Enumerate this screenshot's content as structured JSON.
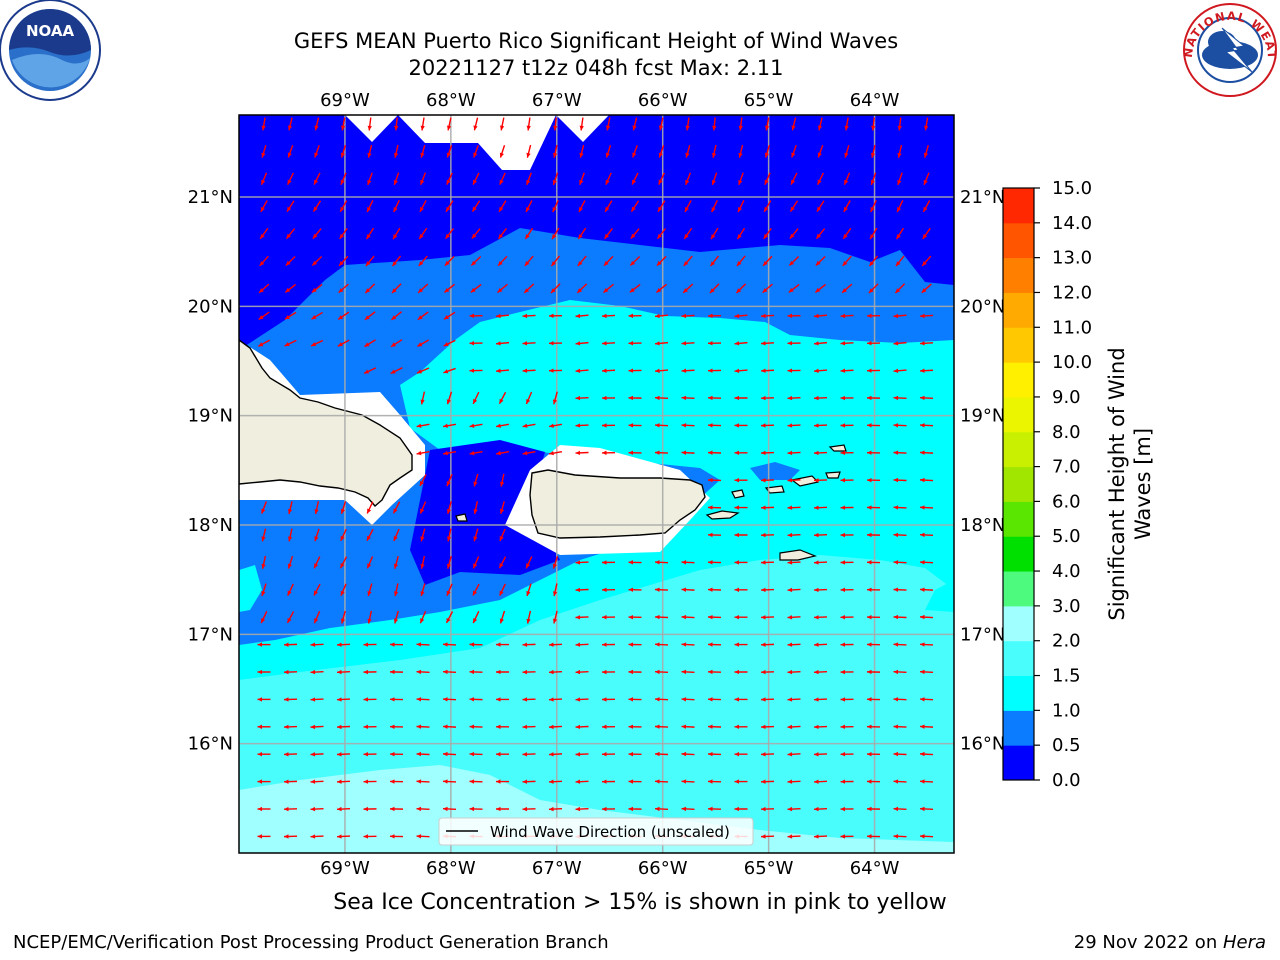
{
  "title": {
    "line1": "GEFS MEAN Puerto Rico Significant Height of Wind Waves",
    "line2": "20221127 t12z 048h fcst   Max: 2.11"
  },
  "logos": {
    "left": {
      "icon": "noaa-logo-icon",
      "text": "NOAA"
    },
    "right": {
      "icon": "nws-logo-icon",
      "text": "NATIONAL WEATHER SERVICE"
    }
  },
  "map": {
    "lon_labels": [
      "69°W",
      "68°W",
      "67°W",
      "66°W",
      "65°W",
      "64°W"
    ],
    "lat_labels": [
      "21°N",
      "20°N",
      "19°N",
      "18°N",
      "17°N",
      "16°N"
    ],
    "lon_values": [
      -69,
      -68,
      -67,
      -66,
      -65,
      -64
    ],
    "lat_values": [
      21,
      20,
      19,
      18,
      17,
      16
    ],
    "lon_range": [
      -70,
      -63.25
    ],
    "lat_range": [
      15,
      21.75
    ],
    "arrow_color": "#ff0000",
    "land_color": "#efeedf",
    "legend_label": "Wind Wave Direction (unscaled)"
  },
  "colorbar": {
    "label_line1": "Significant Height of Wind",
    "label_line2": "Waves [m]",
    "ticks": [
      "0.0",
      "0.5",
      "1.0",
      "1.5",
      "2.0",
      "3.0",
      "4.0",
      "5.0",
      "6.0",
      "7.0",
      "8.0",
      "9.0",
      "10.0",
      "11.0",
      "12.0",
      "13.0",
      "14.0",
      "15.0"
    ],
    "colors": [
      "#0000ff",
      "#0b7bff",
      "#00ffff",
      "#49fdfd",
      "#a0ffff",
      "#4dfa7d",
      "#00e000",
      "#5ae600",
      "#a0e600",
      "#c8f000",
      "#ebf500",
      "#fff000",
      "#ffc800",
      "#ffaa00",
      "#ff8000",
      "#ff5500",
      "#ff2800"
    ]
  },
  "note": "Sea Ice Concentration > 15% is shown in pink to yellow",
  "footer": {
    "left": "NCEP/EMC/Verification Post Processing Product Generation Branch",
    "right_date": "29 Nov 2022 on ",
    "right_host": "Hera"
  }
}
